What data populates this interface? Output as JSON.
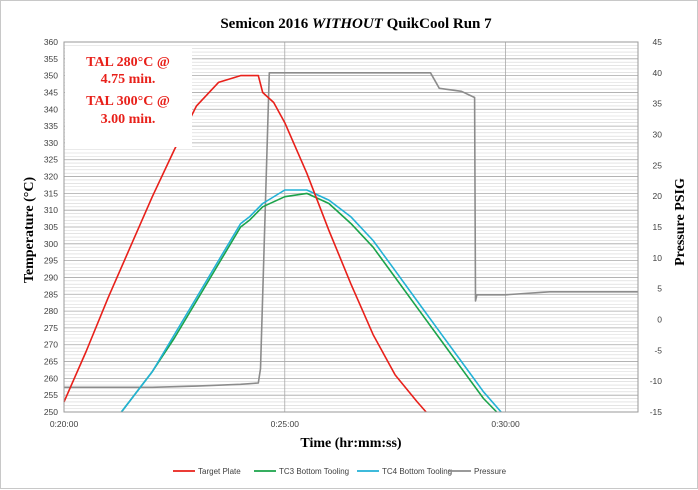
{
  "chart_data": {
    "type": "line",
    "title_parts": [
      "Semicon 2016 ",
      "WITHOUT",
      " QuikCool Run 7"
    ],
    "xlabel": "Time  (hr:mm:ss)",
    "ylabel_left": "Temperature  (°C)",
    "ylabel_right": "Pressure  PSIG",
    "x_ticks": [
      "0:20:00",
      "0:25:00",
      "0:30:00"
    ],
    "x_tick_minutes": [
      20,
      25,
      30
    ],
    "xlim_minutes": [
      20,
      33
    ],
    "ylim_left": [
      250,
      360
    ],
    "ylim_right": [
      -15,
      45
    ],
    "y_left_ticks": [
      250,
      255,
      260,
      265,
      270,
      275,
      280,
      285,
      290,
      295,
      300,
      305,
      310,
      315,
      320,
      325,
      330,
      335,
      340,
      345,
      350,
      355,
      360
    ],
    "y_right_ticks": [
      -15,
      -10,
      -5,
      0,
      5,
      10,
      15,
      20,
      25,
      30,
      35,
      40,
      45
    ],
    "grid": true,
    "legend_position": "bottom",
    "annotations": [
      "TAL 280°C @",
      "4.75 min.",
      "TAL 300°C @",
      "3.00 min."
    ],
    "series": [
      {
        "name": "Target Plate",
        "color": "#e8201a",
        "axis": "left",
        "x": [
          20.0,
          20.5,
          21.0,
          21.5,
          22.0,
          22.5,
          23.0,
          23.5,
          24.0,
          24.2,
          24.4,
          24.5,
          24.75,
          25.0,
          25.5,
          26.0,
          26.5,
          27.0,
          27.5,
          28.0,
          28.2
        ],
        "y": [
          253,
          268,
          284,
          299,
          314,
          328,
          341,
          348,
          350,
          350,
          350,
          345,
          342,
          336,
          321,
          304,
          288,
          273,
          261,
          253,
          250
        ]
      },
      {
        "name": "TC3 Bottom Tooling",
        "color": "#1aa34a",
        "axis": "left",
        "x": [
          21.3,
          22.0,
          22.5,
          23.0,
          23.5,
          24.0,
          24.2,
          24.5,
          25.0,
          25.5,
          26.0,
          26.5,
          27.0,
          27.5,
          28.0,
          28.5,
          29.0,
          29.5,
          29.8
        ],
        "y": [
          250,
          262,
          272,
          283,
          294,
          305,
          307,
          311,
          314,
          315,
          312,
          306,
          299,
          290,
          281,
          272,
          263,
          254,
          250
        ]
      },
      {
        "name": "TC4 Bottom Tooling",
        "color": "#23b1d6",
        "axis": "left",
        "x": [
          21.3,
          22.0,
          22.5,
          23.0,
          23.5,
          24.0,
          24.2,
          24.5,
          25.0,
          25.5,
          26.0,
          26.5,
          27.0,
          27.5,
          28.0,
          28.5,
          29.0,
          29.5,
          29.9
        ],
        "y": [
          250,
          262,
          273,
          284,
          295,
          306,
          308,
          312,
          316,
          316,
          313,
          308,
          301,
          292,
          283,
          274,
          265,
          256,
          250
        ]
      },
      {
        "name": "Pressure",
        "color": "#8c8c8c",
        "axis": "right",
        "x": [
          20.0,
          21.0,
          22.0,
          23.0,
          24.0,
          24.4,
          24.45,
          24.65,
          25.0,
          26.0,
          27.0,
          28.0,
          28.3,
          28.5,
          29.0,
          29.3,
          29.32,
          29.35,
          30.0,
          31.0,
          32.0,
          33.0
        ],
        "y": [
          -11,
          -11,
          -11,
          -10.8,
          -10.5,
          -10.3,
          -8,
          40,
          40,
          40,
          40,
          40,
          40,
          37.5,
          37,
          36,
          3,
          4,
          4,
          4.5,
          4.5,
          4.5
        ]
      }
    ]
  }
}
